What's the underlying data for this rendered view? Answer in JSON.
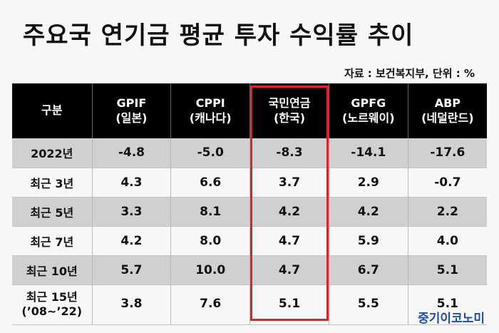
{
  "title": "주요국 연기금 평균 투자 수익률 추이",
  "source": "자료 : 보건복지부, 단위 : %",
  "table": {
    "headers": [
      {
        "line1": "구분",
        "line2": ""
      },
      {
        "line1": "GPIF",
        "line2": "(일본)"
      },
      {
        "line1": "CPPI",
        "line2": "(캐나다)"
      },
      {
        "line1": "국민연금",
        "line2": "(한국)"
      },
      {
        "line1": "GPFG",
        "line2": "(노르웨이)"
      },
      {
        "line1": "ABP",
        "line2": "(네덜란드)"
      }
    ],
    "rows": [
      {
        "label": "2022년",
        "sub": "",
        "values": [
          "-4.8",
          "-5.0",
          "-8.3",
          "-14.1",
          "-17.6"
        ]
      },
      {
        "label": "최근 3년",
        "sub": "",
        "values": [
          "4.3",
          "6.6",
          "3.7",
          "2.9",
          "-0.7"
        ]
      },
      {
        "label": "최근 5년",
        "sub": "",
        "values": [
          "3.3",
          "8.1",
          "4.2",
          "4.2",
          "2.2"
        ]
      },
      {
        "label": "최근 7년",
        "sub": "",
        "values": [
          "4.2",
          "8.0",
          "4.7",
          "5.9",
          "4.0"
        ]
      },
      {
        "label": "최근 10년",
        "sub": "",
        "values": [
          "5.7",
          "10.0",
          "4.7",
          "6.7",
          "5.1"
        ]
      },
      {
        "label": "최근 15년",
        "sub": "(’08~’22)",
        "values": [
          "3.8",
          "7.6",
          "5.1",
          "5.5",
          "5.1"
        ]
      }
    ]
  },
  "highlight_color": "#e4231f",
  "watermark": "중기이코노미"
}
